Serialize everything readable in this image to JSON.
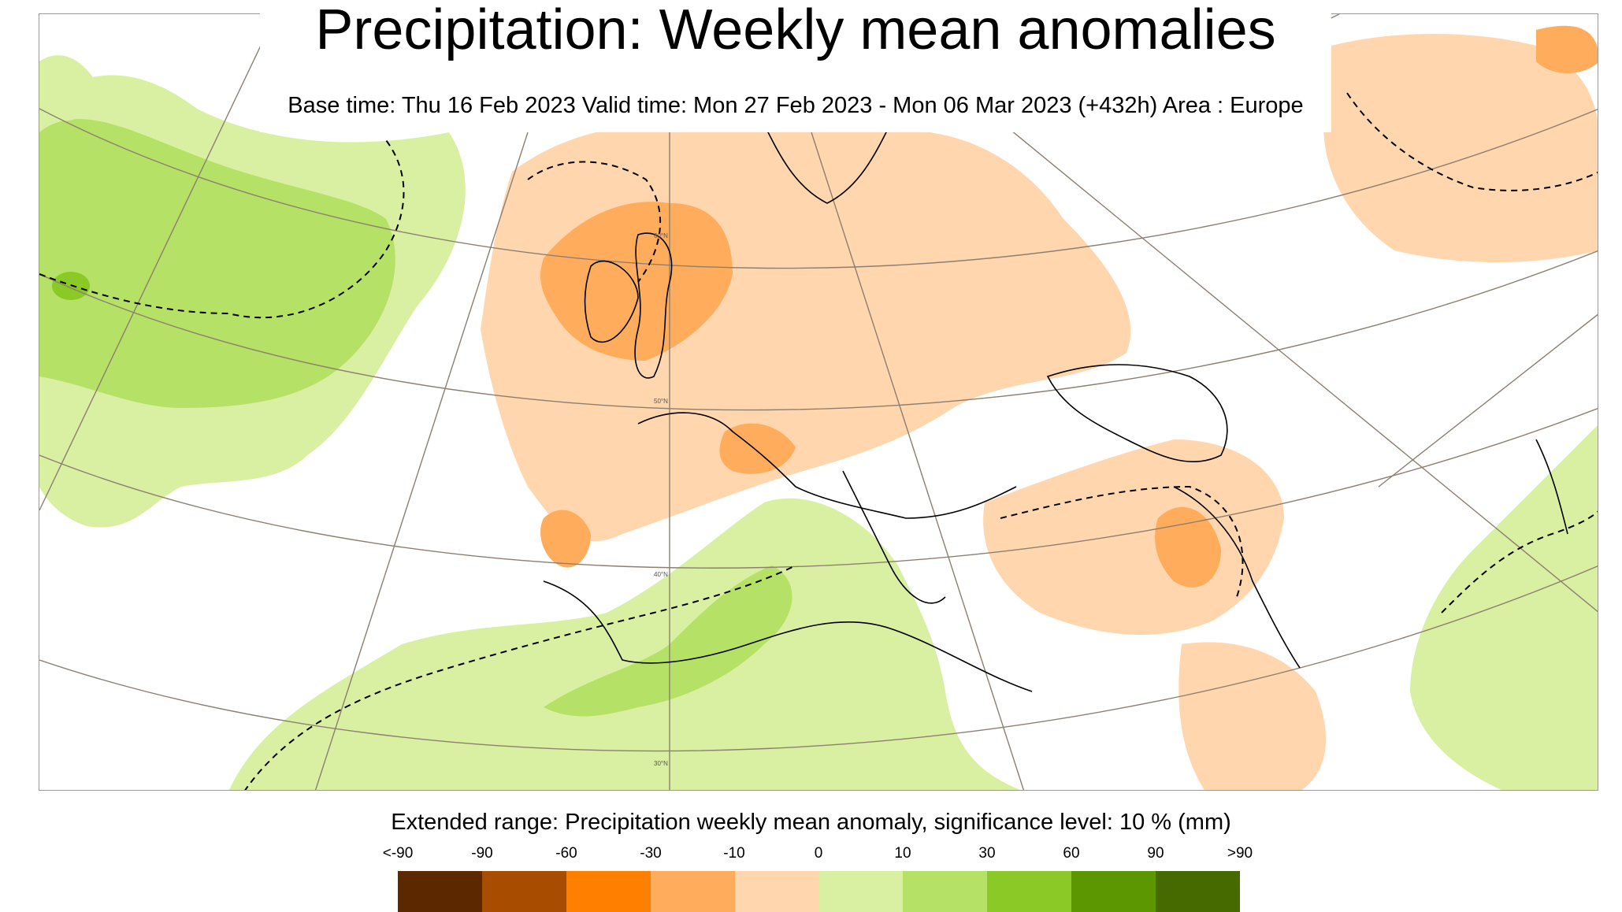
{
  "header": {
    "title": "Precipitation: Weekly mean anomalies",
    "subtitle": "Base time: Thu 16 Feb 2023 Valid time: Mon 27 Feb 2023 - Mon 06 Mar 2023 (+432h) Area : Europe"
  },
  "map": {
    "graticule_labels": [
      "60°N",
      "50°N",
      "40°N",
      "30°N"
    ],
    "colors": {
      "dry_strong": "#ffad5c",
      "dry_weak": "#ffd6ad",
      "wet_weak": "#d9f0a3",
      "wet_moderate": "#b5e166",
      "wet_strong": "#8ac926",
      "graticule": "#8c7f70",
      "coastline": "#000000"
    }
  },
  "legend": {
    "title": "Extended range: Precipitation weekly mean anomaly, significance level: 10 % (mm)",
    "ticks": [
      "<-90",
      "-90",
      "-60",
      "-30",
      "-10",
      "0",
      "10",
      "30",
      "60",
      "90",
      ">90"
    ],
    "colors": [
      "#5c2800",
      "#a84c00",
      "#ff8000",
      "#ffad5c",
      "#ffd6ad",
      "#d9f0a3",
      "#b5e166",
      "#8ac926",
      "#5c9600",
      "#476a00"
    ]
  }
}
